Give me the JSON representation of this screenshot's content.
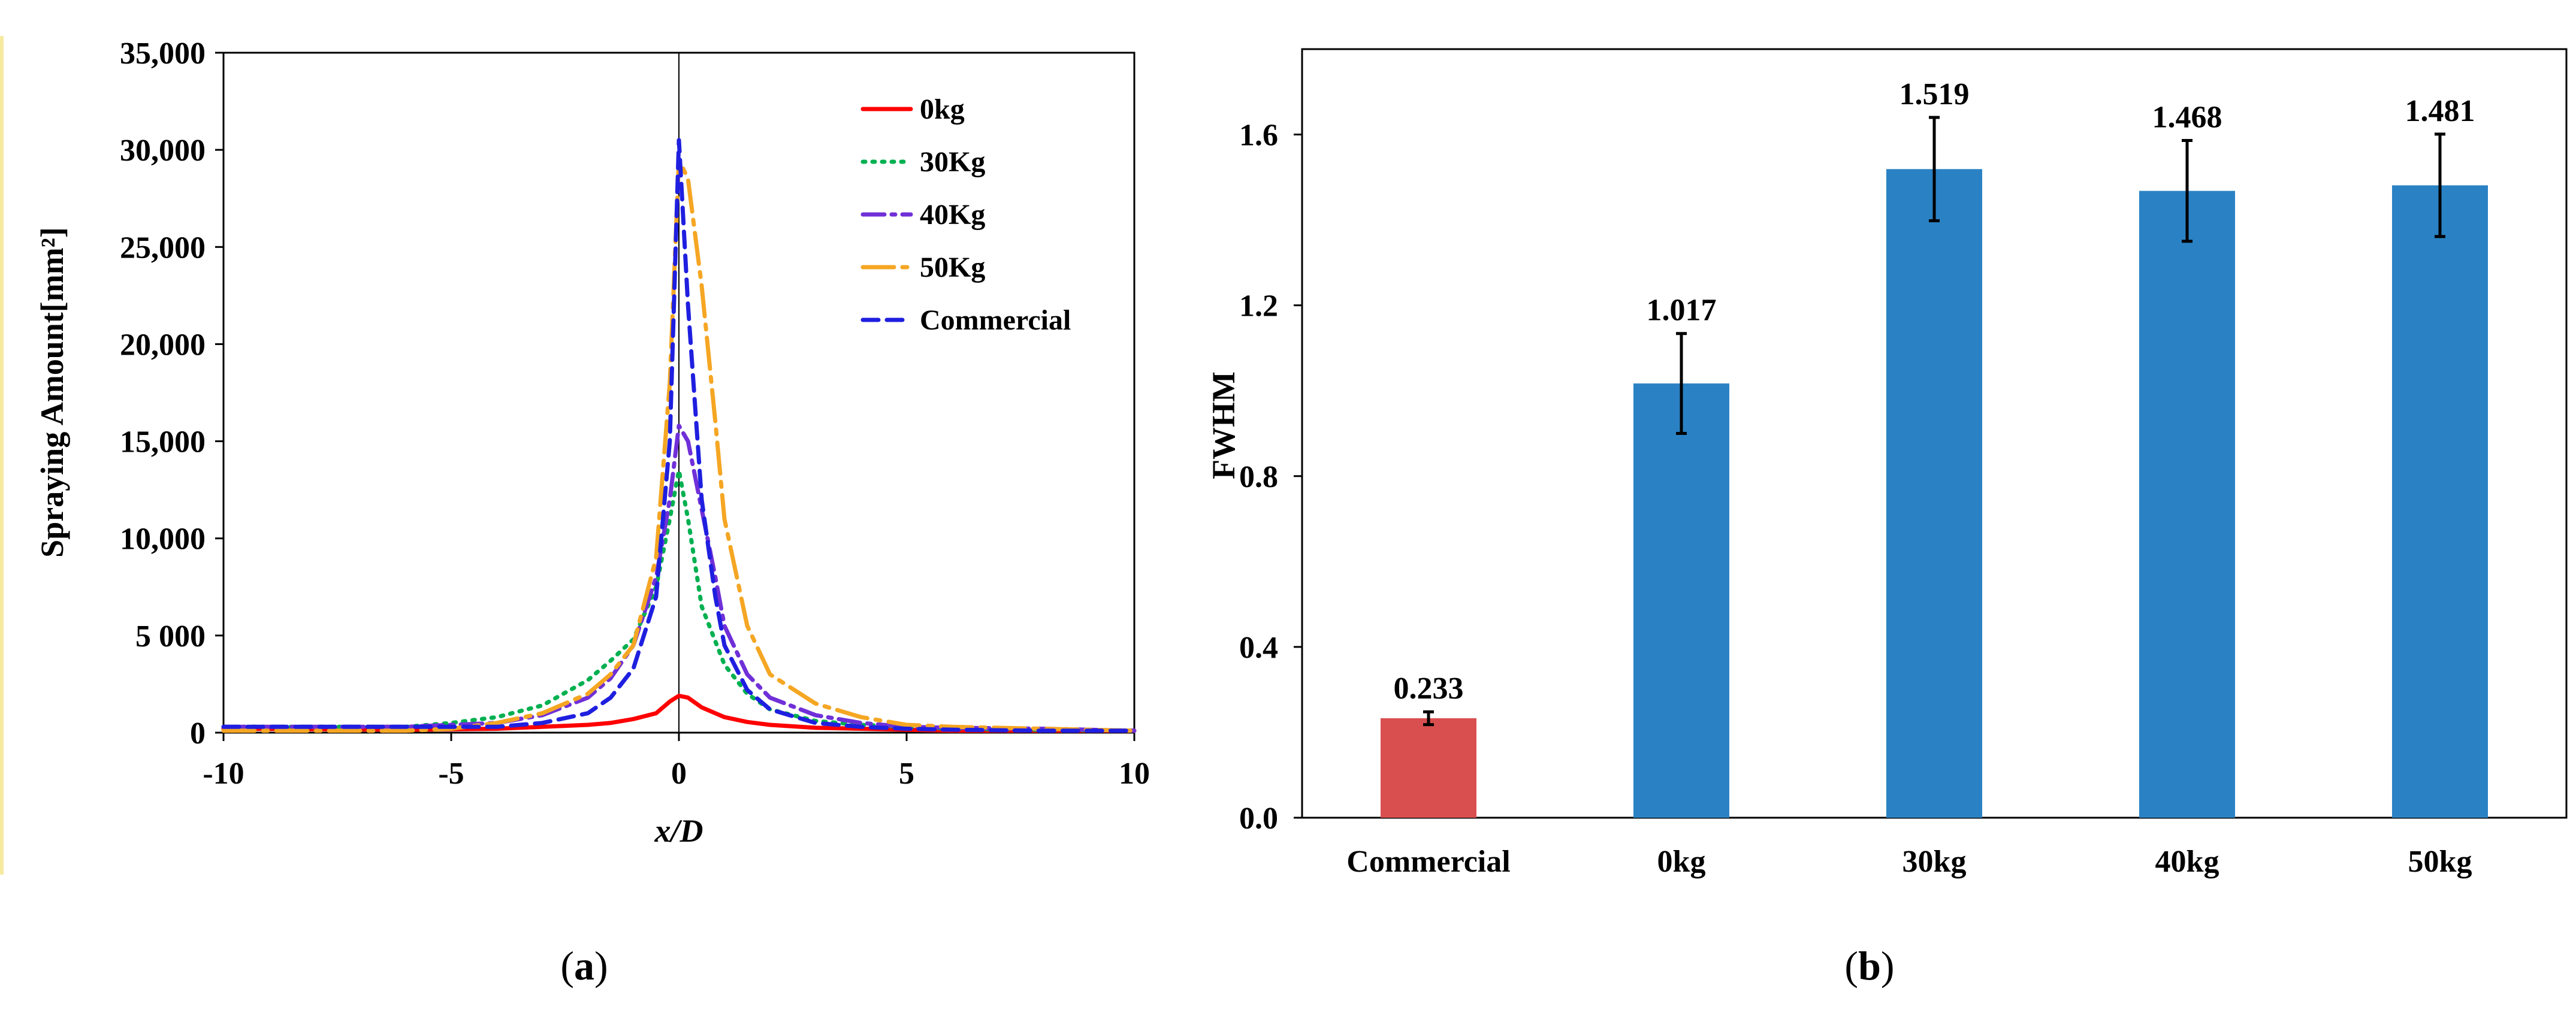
{
  "colors": {
    "0kg": "#ff0000",
    "30Kg": "#00b050",
    "40Kg": "#7030d8",
    "50Kg": "#f5a623",
    "Commercial_line": "#1f1fe0",
    "bar_commercial": "#d94f4f",
    "bar_other": "#2a82c4"
  },
  "chart_data": [
    {
      "panel": "a",
      "type": "line",
      "caption_letter": "a",
      "xlabel_italic": "x",
      "xlabel_rest": "/D",
      "ylabel": "Spraying Amount[mm²]",
      "xlim": [
        -10,
        10
      ],
      "ylim": [
        0,
        35000
      ],
      "xticks": [
        -10,
        -5,
        0,
        5,
        10
      ],
      "xtick_labels": [
        "-10",
        "-5",
        "0",
        "5",
        "10"
      ],
      "yticks": [
        0,
        5000,
        10000,
        15000,
        20000,
        25000,
        30000,
        35000
      ],
      "ytick_labels": [
        "0",
        "5 000",
        "10,000",
        "15,000",
        "20,000",
        "25,000",
        "30,000",
        "35,000"
      ],
      "legend_position": "top-right",
      "series": [
        {
          "name": "0kg",
          "style": "solid",
          "x": [
            -10,
            -6,
            -4,
            -3,
            -2,
            -1.5,
            -1,
            -0.5,
            -0.2,
            0,
            0.2,
            0.5,
            1,
            1.5,
            2,
            3,
            4,
            5,
            6,
            8,
            10
          ],
          "y": [
            200,
            150,
            200,
            300,
            400,
            500,
            700,
            1000,
            1600,
            1900,
            1800,
            1300,
            800,
            550,
            400,
            250,
            200,
            150,
            100,
            100,
            100
          ]
        },
        {
          "name": "30Kg",
          "style": "dotted",
          "x": [
            -10,
            -6,
            -5,
            -4,
            -3,
            -2,
            -1.5,
            -1,
            -0.5,
            -0.2,
            0,
            0.2,
            0.5,
            1,
            1.5,
            2,
            3,
            4,
            5,
            6,
            8,
            10
          ],
          "y": [
            300,
            300,
            500,
            800,
            1400,
            2700,
            3700,
            4800,
            7500,
            11000,
            13500,
            11000,
            6500,
            3500,
            2000,
            1200,
            600,
            400,
            300,
            200,
            150,
            100
          ]
        },
        {
          "name": "40Kg",
          "style": "dashdot",
          "x": [
            -10,
            -7,
            -6,
            -5,
            -4,
            -3,
            -2,
            -1.5,
            -1,
            -0.5,
            -0.2,
            0,
            0.2,
            0.5,
            0.8,
            1,
            1.5,
            2,
            3,
            4,
            5,
            6,
            8,
            10
          ],
          "y": [
            300,
            300,
            300,
            400,
            500,
            900,
            1800,
            2800,
            4500,
            8000,
            12000,
            15800,
            15000,
            11500,
            8000,
            5500,
            3000,
            1800,
            900,
            500,
            300,
            250,
            200,
            100
          ]
        },
        {
          "name": "50Kg",
          "style": "longdashdot",
          "x": [
            -10,
            -6,
            -5,
            -4,
            -3,
            -2,
            -1.5,
            -1,
            -0.5,
            -0.2,
            0,
            0.2,
            0.5,
            0.8,
            1,
            1.5,
            2,
            3,
            4,
            5,
            6,
            8,
            10
          ],
          "y": [
            100,
            100,
            200,
            500,
            1000,
            2000,
            3000,
            4500,
            9000,
            18000,
            29500,
            28500,
            23000,
            16000,
            11000,
            5500,
            3000,
            1500,
            800,
            400,
            300,
            200,
            100
          ]
        },
        {
          "name": "Commercial",
          "style": "dashed",
          "x": [
            -10,
            -7,
            -6,
            -5,
            -4,
            -3,
            -2,
            -1.5,
            -1,
            -0.5,
            -0.2,
            0,
            0.2,
            0.5,
            0.8,
            1,
            1.5,
            2,
            3,
            4,
            5,
            6,
            8,
            10
          ],
          "y": [
            300,
            300,
            300,
            300,
            300,
            500,
            1000,
            1800,
            3300,
            7000,
            15000,
            30500,
            22000,
            12000,
            7000,
            4500,
            2200,
            1200,
            500,
            300,
            200,
            150,
            100,
            100
          ]
        }
      ]
    },
    {
      "panel": "b",
      "type": "bar",
      "caption_letter": "b",
      "xlabel": "",
      "ylabel": "FWHM",
      "ylim": [
        0,
        1.8
      ],
      "yticks": [
        0,
        0.4,
        0.8,
        1.2,
        1.6
      ],
      "ytick_labels": [
        "0.0",
        "0.4",
        "0.8",
        "1.2",
        "1.6"
      ],
      "categories": [
        "Commercial",
        "0kg",
        "30kg",
        "40kg",
        "50kg"
      ],
      "values": [
        0.233,
        1.017,
        1.519,
        1.468,
        1.481
      ],
      "value_labels": [
        "0.233",
        "1.017",
        "1.519",
        "1.468",
        "1.481"
      ],
      "errors": [
        0.015,
        0.117,
        0.121,
        0.118,
        0.12
      ]
    }
  ]
}
